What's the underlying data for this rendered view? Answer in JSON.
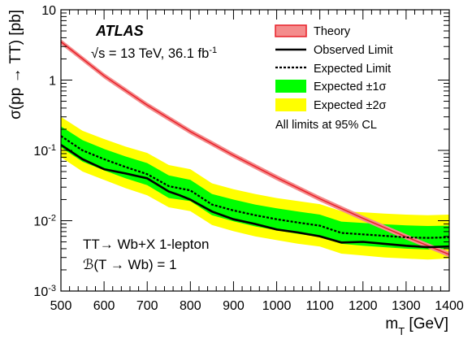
{
  "chart_data": {
    "type": "line",
    "experiment": "ATLAS",
    "energy_text": "s = 13 TeV, 36.1 fb",
    "energy_sqrt": "√",
    "energy_sup": "-1",
    "xlabel": "m",
    "xlabel_sub": "T",
    "xlabel_unit": " [GeV]",
    "ylabel": "σ(pp → TT) [pb]",
    "x_scale": "linear",
    "y_scale": "log",
    "xlim": [
      500,
      1400
    ],
    "ylim": [
      0.001,
      10
    ],
    "x_ticks": [
      "500",
      "600",
      "700",
      "800",
      "900",
      "1000",
      "1100",
      "1200",
      "1300",
      "1400"
    ],
    "y_ticks": [
      {
        "base": "10",
        "exp": "-3",
        "value": 0.001
      },
      {
        "base": "10",
        "exp": "-2",
        "value": 0.01
      },
      {
        "base": "10",
        "exp": "-1",
        "value": 0.1
      },
      {
        "base": "1",
        "exp": "",
        "value": 1
      },
      {
        "base": "10",
        "exp": "",
        "value": 10
      }
    ],
    "annotations": {
      "line1": "TT→ Wb+X 1-lepton",
      "line2": "ℬ(T → Wb) = 1",
      "cl_note": "All limits at 95% CL"
    },
    "legend_position": "top-right",
    "legend": {
      "theory": "Theory",
      "observed": "Observed Limit",
      "expected": "Expected Limit",
      "band1": "Expected ±1σ",
      "band2": "Expected ±2σ"
    },
    "colors": {
      "theory_fill": "#f48c8c",
      "theory_line": "#e8202a",
      "band1": "#00ff00",
      "band2": "#ffff00",
      "observed": "#000000",
      "expected": "#000000"
    },
    "series": [
      {
        "name": "Theory",
        "x": [
          500,
          600,
          700,
          800,
          900,
          1000,
          1100,
          1200,
          1300,
          1400
        ],
        "values": [
          3.5,
          1.15,
          0.44,
          0.185,
          0.085,
          0.041,
          0.0205,
          0.0108,
          0.0059,
          0.0033
        ]
      },
      {
        "name": "Observed Limit",
        "x": [
          500,
          550,
          600,
          650,
          700,
          750,
          775,
          800,
          850,
          900,
          950,
          1000,
          1050,
          1100,
          1150,
          1200,
          1250,
          1300,
          1350,
          1400
        ],
        "values": [
          0.12,
          0.075,
          0.054,
          0.047,
          0.04,
          0.026,
          0.023,
          0.02,
          0.0135,
          0.0105,
          0.009,
          0.0075,
          0.0068,
          0.006,
          0.0049,
          0.005,
          0.0047,
          0.0044,
          0.0042,
          0.0043
        ]
      },
      {
        "name": "Expected Limit",
        "x": [
          500,
          550,
          600,
          650,
          700,
          750,
          800,
          850,
          900,
          950,
          1000,
          1050,
          1100,
          1150,
          1200,
          1250,
          1300,
          1350,
          1400
        ],
        "values": [
          0.16,
          0.1,
          0.075,
          0.058,
          0.046,
          0.031,
          0.027,
          0.017,
          0.014,
          0.012,
          0.0105,
          0.0094,
          0.0085,
          0.0067,
          0.0064,
          0.0061,
          0.0058,
          0.0057,
          0.0058
        ]
      },
      {
        "name": "Expected ±1σ",
        "x": [
          500,
          550,
          600,
          650,
          700,
          750,
          800,
          850,
          900,
          950,
          1000,
          1050,
          1100,
          1150,
          1200,
          1250,
          1300,
          1350,
          1400
        ],
        "upper": [
          0.22,
          0.14,
          0.105,
          0.082,
          0.066,
          0.044,
          0.038,
          0.024,
          0.02,
          0.017,
          0.015,
          0.0135,
          0.0122,
          0.0097,
          0.0093,
          0.0089,
          0.0086,
          0.0084,
          0.0085
        ],
        "lower": [
          0.11,
          0.069,
          0.052,
          0.04,
          0.032,
          0.021,
          0.019,
          0.012,
          0.0098,
          0.0083,
          0.0073,
          0.0065,
          0.0059,
          0.0047,
          0.0044,
          0.0042,
          0.004,
          0.0039,
          0.004
        ]
      },
      {
        "name": "Expected ±2σ",
        "x": [
          500,
          550,
          600,
          650,
          700,
          750,
          800,
          850,
          900,
          950,
          1000,
          1050,
          1100,
          1150,
          1200,
          1250,
          1300,
          1350,
          1400
        ],
        "upper": [
          0.3,
          0.19,
          0.145,
          0.113,
          0.092,
          0.062,
          0.054,
          0.034,
          0.028,
          0.024,
          0.021,
          0.019,
          0.0172,
          0.0137,
          0.0132,
          0.0126,
          0.0122,
          0.012,
          0.0122
        ],
        "lower": [
          0.08,
          0.05,
          0.038,
          0.029,
          0.023,
          0.0155,
          0.0137,
          0.0087,
          0.0071,
          0.006,
          0.0053,
          0.0047,
          0.0043,
          0.0034,
          0.0032,
          0.003,
          0.0029,
          0.0028,
          0.0029
        ]
      }
    ]
  }
}
